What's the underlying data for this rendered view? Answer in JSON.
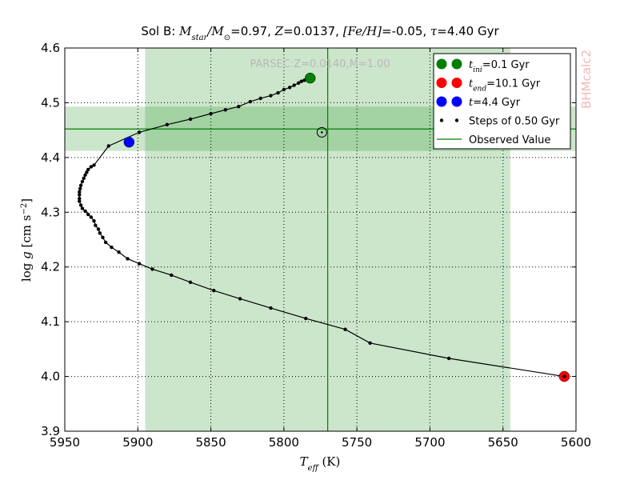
{
  "chart_data": {
    "type": "line",
    "title": "Sol B: M_star/M_⊙=0.97, Z=0.0137, [Fe/H]=-0.05, τ=4.40 Gyr",
    "xlabel": "T_eff (K)",
    "ylabel": "log g [cm s^-2]",
    "xlim": [
      5950,
      5600
    ],
    "ylim": [
      3.9,
      4.6
    ],
    "x_reversed": true,
    "xticks": [
      "5950",
      "5900",
      "5850",
      "5800",
      "5750",
      "5700",
      "5650",
      "5600"
    ],
    "yticks": [
      "3.9",
      "4.0",
      "4.1",
      "4.2",
      "4.3",
      "4.4",
      "4.5",
      "4.6"
    ],
    "grid": true,
    "annotation": "PARSEC:Z=0.0140,M=1.00",
    "watermark": "BHMcalc2",
    "legend_position": "top-right",
    "legend": [
      {
        "label": "t_ini=0.1 Gyr",
        "color": "#008000",
        "marker": "double-circle"
      },
      {
        "label": "t_end=10.1 Gyr",
        "color": "#ff0000",
        "marker": "double-circle"
      },
      {
        "label": "t=4.4 Gyr",
        "color": "#0000ff",
        "marker": "double-circle"
      },
      {
        "label": "Steps of 0.50 Gyr",
        "color": "#000000",
        "marker": "double-dot"
      },
      {
        "label": "Observed Value",
        "color": "#008000",
        "marker": "line"
      }
    ],
    "track": {
      "x": [
        5782,
        5784,
        5786,
        5788,
        5790,
        5793,
        5796,
        5800,
        5804,
        5809,
        5816,
        5823,
        5831,
        5840,
        5850,
        5864,
        5880,
        5899,
        5920,
        5930,
        5932,
        5934,
        5935,
        5936,
        5937,
        5938,
        5939,
        5939.5,
        5940,
        5940,
        5940,
        5940,
        5939,
        5938,
        5936,
        5934,
        5932,
        5930,
        5929,
        5927,
        5926,
        5924,
        5922,
        5918,
        5913,
        5907,
        5899,
        5890,
        5877,
        5864,
        5848,
        5830,
        5809,
        5785,
        5758,
        5741,
        5687,
        5608
      ],
      "y": [
        4.545,
        4.543,
        4.541,
        4.539,
        4.536,
        4.532,
        4.528,
        4.524,
        4.518,
        4.513,
        4.508,
        4.502,
        4.493,
        4.487,
        4.48,
        4.47,
        4.46,
        4.446,
        4.421,
        4.386,
        4.383,
        4.378,
        4.373,
        4.368,
        4.362,
        4.356,
        4.349,
        4.343,
        4.337,
        4.332,
        4.325,
        4.32,
        4.313,
        4.307,
        4.302,
        4.296,
        4.291,
        4.284,
        4.276,
        4.269,
        4.262,
        4.254,
        4.245,
        4.236,
        4.227,
        4.215,
        4.206,
        4.196,
        4.185,
        4.172,
        4.157,
        4.142,
        4.125,
        4.106,
        4.086,
        4.061,
        4.033,
        4.0
      ]
    },
    "points": {
      "initial": {
        "label": "t_ini=0.1 Gyr",
        "x": 5782,
        "y": 4.545,
        "color": "#008000"
      },
      "final": {
        "label": "t_end=10.1 Gyr",
        "x": 5608,
        "y": 4.0,
        "color": "#ff0000"
      },
      "current": {
        "label": "t=4.4 Gyr",
        "x": 5906,
        "y": 4.428,
        "color": "#0000ff"
      },
      "observed_marker": {
        "x": 5774,
        "y": 4.446
      }
    },
    "observed": {
      "teff": 5770,
      "teff_range": [
        5895,
        5645
      ],
      "logg": 4.452,
      "logg_range": [
        4.412,
        4.493
      ],
      "color": "#008000"
    }
  }
}
